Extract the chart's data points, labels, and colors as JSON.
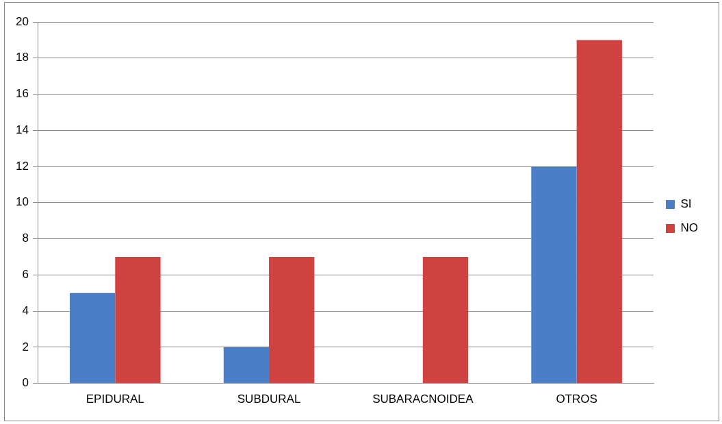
{
  "chart_data": {
    "type": "bar",
    "categories": [
      "EPIDURAL",
      "SUBDURAL",
      "SUBARACNOIDEA",
      "OTROS"
    ],
    "series": [
      {
        "name": "SI",
        "color": "#4a7fc8",
        "values": [
          5,
          2,
          0,
          12
        ]
      },
      {
        "name": "NO",
        "color": "#d0423f",
        "values": [
          7,
          7,
          7,
          19
        ]
      }
    ],
    "ylim": [
      0,
      20
    ],
    "yticks": [
      0,
      2,
      4,
      6,
      8,
      10,
      12,
      14,
      16,
      18,
      20
    ],
    "grid": "y",
    "legend": "right"
  }
}
